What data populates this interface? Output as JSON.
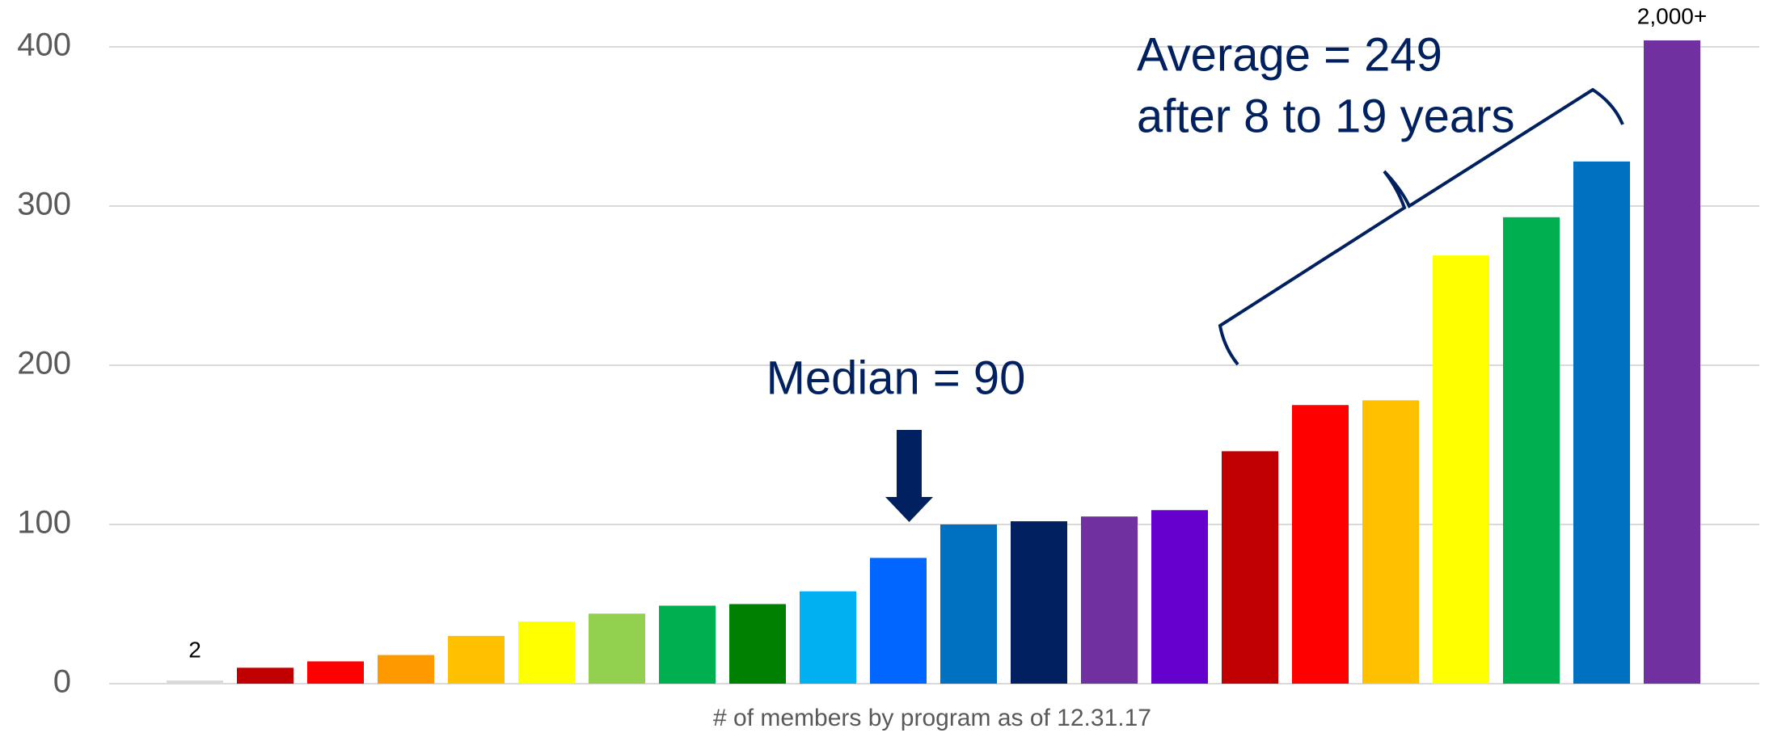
{
  "chart_data": {
    "type": "bar",
    "x_label": "# of members by program as of 12.31.17",
    "categories": [
      null,
      null,
      null,
      null,
      null,
      null,
      null,
      null,
      null,
      null,
      null,
      null,
      null,
      null,
      null,
      null,
      null,
      null,
      null,
      null,
      null,
      null
    ],
    "values": [
      2,
      10,
      14,
      18,
      30,
      39,
      44,
      49,
      50,
      58,
      79,
      100,
      102,
      105,
      109,
      146,
      175,
      178,
      269,
      293,
      328,
      2000
    ],
    "value_labels": [
      "2",
      null,
      null,
      null,
      null,
      null,
      null,
      null,
      null,
      null,
      null,
      null,
      null,
      null,
      null,
      null,
      null,
      null,
      null,
      null,
      null,
      "2,000+"
    ],
    "colors": [
      "#d9d9d9",
      "#c00000",
      "#ff0000",
      "#ff9900",
      "#ffc000",
      "#ffff00",
      "#92d050",
      "#00b050",
      "#008000",
      "#00b0f0",
      "#0066ff",
      "#0070c0",
      "#002060",
      "#7030a0",
      "#6600cc",
      "#c00000",
      "#ff0000",
      "#ffc000",
      "#ffff00",
      "#00b050",
      "#0070c0",
      "#7030a0"
    ],
    "ylim": [
      0,
      400
    ],
    "yticks": [
      0,
      100,
      200,
      300,
      400
    ],
    "grid": true,
    "annotations": [
      "Median = 90",
      "Average = 249",
      "after 8 to 19 years"
    ]
  }
}
